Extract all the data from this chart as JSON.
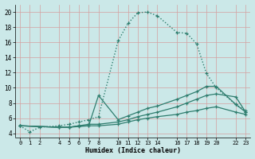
{
  "xlabel": "Humidex (Indice chaleur)",
  "bg_color": "#cbe8e8",
  "grid_color": "#d4a0a0",
  "line_color": "#2e7d6e",
  "xlim": [
    -0.5,
    23.5
  ],
  "ylim": [
    3.5,
    21.0
  ],
  "xticks": [
    0,
    1,
    2,
    4,
    5,
    6,
    7,
    8,
    10,
    11,
    12,
    13,
    14,
    16,
    17,
    18,
    19,
    20,
    22,
    23
  ],
  "yticks": [
    4,
    6,
    8,
    10,
    12,
    14,
    16,
    18,
    20
  ],
  "line1_x": [
    0,
    1,
    2,
    4,
    5,
    6,
    7,
    8,
    10,
    11,
    12,
    13,
    14,
    16,
    17,
    18,
    19,
    20,
    22,
    23
  ],
  "line1_y": [
    5.0,
    4.2,
    4.8,
    5.0,
    5.2,
    5.5,
    5.8,
    6.2,
    16.2,
    18.5,
    19.9,
    20.0,
    19.5,
    17.3,
    17.2,
    15.8,
    11.9,
    10.0,
    7.8,
    7.0
  ],
  "line2_x": [
    0,
    4,
    5,
    6,
    7,
    8,
    10,
    11,
    12,
    13,
    14,
    16,
    17,
    18,
    19,
    20,
    22,
    23
  ],
  "line2_y": [
    5.0,
    4.8,
    4.8,
    4.9,
    5.0,
    9.0,
    5.8,
    6.3,
    6.8,
    7.3,
    7.6,
    8.5,
    9.0,
    9.5,
    10.2,
    10.2,
    7.8,
    6.8
  ],
  "line3_x": [
    0,
    4,
    5,
    6,
    7,
    8,
    10,
    11,
    12,
    13,
    14,
    16,
    17,
    18,
    19,
    20,
    22,
    23
  ],
  "line3_y": [
    5.0,
    4.8,
    4.8,
    5.0,
    5.2,
    5.2,
    5.5,
    5.8,
    6.2,
    6.5,
    6.8,
    7.5,
    8.0,
    8.5,
    9.0,
    9.2,
    8.8,
    6.8
  ],
  "line4_x": [
    0,
    4,
    5,
    6,
    7,
    8,
    10,
    11,
    12,
    13,
    14,
    16,
    17,
    18,
    19,
    20,
    22,
    23
  ],
  "line4_y": [
    5.0,
    4.8,
    4.8,
    5.0,
    5.0,
    5.0,
    5.2,
    5.5,
    5.8,
    6.0,
    6.2,
    6.5,
    6.8,
    7.0,
    7.3,
    7.5,
    6.8,
    6.5
  ]
}
